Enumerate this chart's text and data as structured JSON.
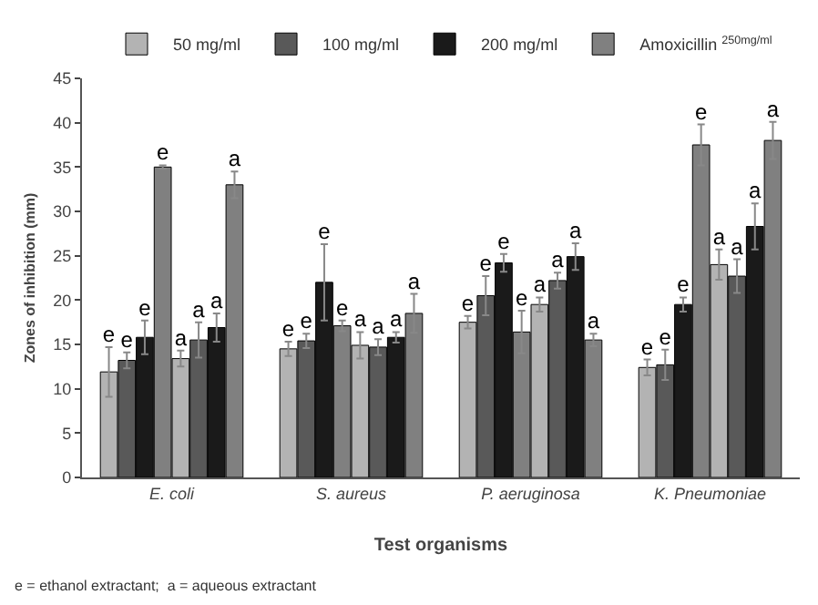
{
  "chart_data": {
    "type": "bar",
    "xlabel": "Test organisms",
    "ylabel": "Zones of inhibition (mm)",
    "categories": [
      "E. coli",
      "S. aureus",
      "P. aeruginosa",
      "K. Pneumoniae"
    ],
    "series": [
      {
        "name": "50 mg/ml",
        "color": "#b3b3b3",
        "values": [
          11.9,
          14.5,
          17.5,
          12.4
        ],
        "errors": [
          2.8,
          0.8,
          0.7,
          0.9
        ],
        "value_labels": [
          "e",
          "e",
          "e",
          "e"
        ]
      },
      {
        "name": "100 mg/ml",
        "color": "#595959",
        "values": [
          13.2,
          15.4,
          20.5,
          12.7
        ],
        "errors": [
          0.9,
          0.8,
          2.2,
          1.7
        ],
        "value_labels": [
          "e",
          "e",
          "e",
          "e"
        ]
      },
      {
        "name": "200 mg/ml",
        "color": "#1a1a1a",
        "values": [
          15.8,
          22.0,
          24.2,
          19.5
        ],
        "errors": [
          1.9,
          4.3,
          1.0,
          0.8
        ],
        "value_labels": [
          "e",
          "e",
          "e",
          "e"
        ]
      },
      {
        "name": "Amoxicillin $^{250mg/ml}$",
        "color": "#808080",
        "values": [
          35.0,
          17.1,
          16.4,
          37.5
        ],
        "errors": [
          0.2,
          0.6,
          2.4,
          2.3
        ],
        "value_labels": [
          "e",
          "e",
          "e",
          "e"
        ]
      },
      {
        "color": "#b3b3b3",
        "values": [
          13.4,
          14.9,
          19.5,
          24.0
        ],
        "errors": [
          0.9,
          1.5,
          0.8,
          1.7
        ],
        "value_labels": [
          "a",
          "a",
          "a",
          "a"
        ]
      },
      {
        "color": "#595959",
        "values": [
          15.5,
          14.7,
          22.2,
          22.7
        ],
        "errors": [
          2.0,
          0.9,
          0.9,
          1.9
        ],
        "value_labels": [
          "a",
          "a",
          "a",
          "a"
        ]
      },
      {
        "color": "#1a1a1a",
        "values": [
          16.9,
          15.8,
          24.9,
          28.3
        ],
        "errors": [
          1.6,
          0.6,
          1.5,
          2.6
        ],
        "value_labels": [
          "a",
          "a",
          "a",
          "a"
        ]
      },
      {
        "color": "#808080",
        "values": [
          33.0,
          18.5,
          15.5,
          38.0
        ],
        "errors": [
          1.5,
          2.2,
          0.7,
          2.1
        ],
        "value_labels": [
          "a",
          "a",
          "a",
          "a"
        ]
      }
    ],
    "ylim": [
      0,
      45
    ],
    "yticks": [
      0,
      5,
      10,
      15,
      20,
      25,
      30,
      35,
      40,
      45
    ],
    "grid": false,
    "legend": "top",
    "annotations": [
      "e = ethanol extractant;  a = aqueous extractant"
    ]
  }
}
